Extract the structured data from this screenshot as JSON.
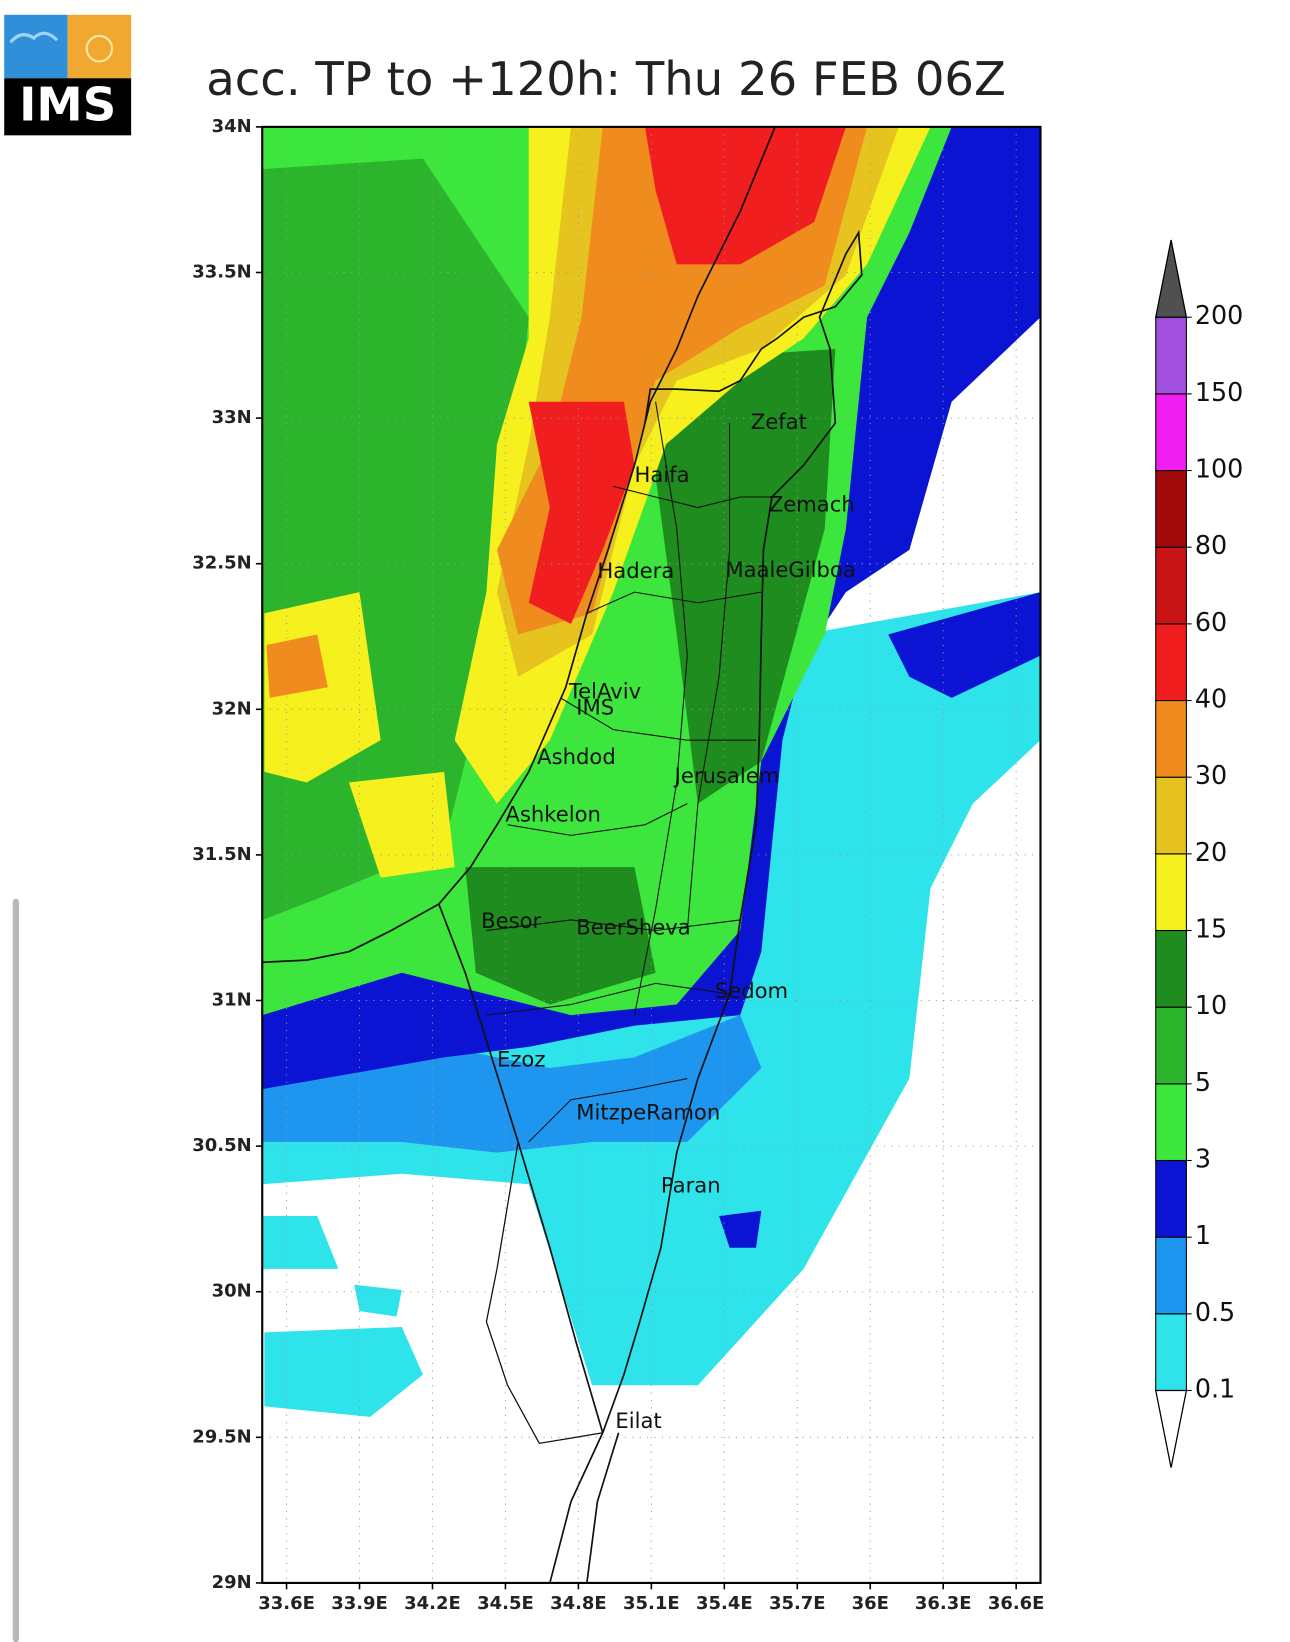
{
  "logo": {
    "text": "IMS"
  },
  "title": "acc. TP to +120h: Thu 26 FEB 06Z",
  "map": {
    "type": "map",
    "grid": true,
    "xlim": [
      33.5,
      36.7
    ],
    "ylim": [
      29,
      34
    ],
    "xticks": [
      {
        "value": 33.6,
        "label": "33.6E"
      },
      {
        "value": 33.9,
        "label": "33.9E"
      },
      {
        "value": 34.2,
        "label": "34.2E"
      },
      {
        "value": 34.5,
        "label": "34.5E"
      },
      {
        "value": 34.8,
        "label": "34.8E"
      },
      {
        "value": 35.1,
        "label": "35.1E"
      },
      {
        "value": 35.4,
        "label": "35.4E"
      },
      {
        "value": 35.7,
        "label": "35.7E"
      },
      {
        "value": 36,
        "label": "36E"
      },
      {
        "value": 36.3,
        "label": "36.3E"
      },
      {
        "value": 36.6,
        "label": "36.6E"
      }
    ],
    "yticks": [
      {
        "value": 29,
        "label": "29N"
      },
      {
        "value": 29.5,
        "label": "29.5N"
      },
      {
        "value": 30,
        "label": "30N"
      },
      {
        "value": 30.5,
        "label": "30.5N"
      },
      {
        "value": 31,
        "label": "31N"
      },
      {
        "value": 31.5,
        "label": "31.5N"
      },
      {
        "value": 32,
        "label": "32N"
      },
      {
        "value": 32.5,
        "label": "32.5N"
      },
      {
        "value": 33,
        "label": "33N"
      },
      {
        "value": 33.5,
        "label": "33.5N"
      },
      {
        "value": 34,
        "label": "34N"
      }
    ],
    "cities": [
      "Zefat",
      "Haifa",
      "Zemach",
      "Hadera",
      "MaaleGilboa",
      "TelAviv",
      "IMS",
      "Ashdod",
      "Jerusalem",
      "Ashkelon",
      "Besor",
      "BeerSheva",
      "Sedom",
      "Ezoz",
      "MitzpeRamon",
      "Paran",
      "Eilat"
    ]
  },
  "colorbar": {
    "levels": [
      0.1,
      0.5,
      1,
      3,
      5,
      10,
      15,
      20,
      30,
      40,
      60,
      80,
      100,
      150,
      200
    ],
    "colors": [
      "#ffffff",
      "#2fe3ea",
      "#1e96f0",
      "#0a14d2",
      "#3ce63c",
      "#2db42d",
      "#1e8c1e",
      "#f5f01e",
      "#e6c31e",
      "#f08c1e",
      "#f01e1e",
      "#c81414",
      "#a00a0a",
      "#f01ef0",
      "#a050dc",
      "#505050"
    ]
  }
}
